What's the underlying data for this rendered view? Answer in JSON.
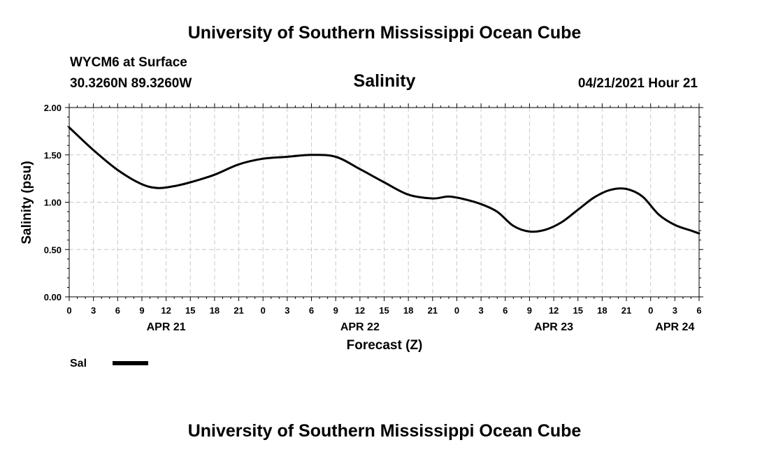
{
  "header": {
    "title_top": "University of Southern Mississippi Ocean Cube",
    "station": "WYCM6 at Surface",
    "coords": "30.3260N  89.3260W",
    "chart_title": "Salinity",
    "timestamp": "04/21/2021 Hour 21",
    "title_bottom": "University of Southern Mississippi Ocean Cube"
  },
  "legend": {
    "label": "Sal"
  },
  "chart_data": {
    "type": "line",
    "title": "Salinity",
    "xlabel": "Forecast (Z)",
    "ylabel": "Salinity (psu)",
    "ylim": [
      0,
      2
    ],
    "y_ticks": [
      "0.00",
      "0.50",
      "1.00",
      "1.50",
      "2.00"
    ],
    "x_range_hours": [
      0,
      78
    ],
    "x_tick_labels": [
      "0",
      "3",
      "6",
      "9",
      "12",
      "15",
      "18",
      "21",
      "0",
      "3",
      "6",
      "9",
      "12",
      "15",
      "18",
      "21",
      "0",
      "3",
      "6",
      "9",
      "12",
      "15",
      "18",
      "21",
      "0",
      "3",
      "6"
    ],
    "date_labels": [
      {
        "label": "APR 21",
        "hour": 12
      },
      {
        "label": "APR 22",
        "hour": 36
      },
      {
        "label": "APR 23",
        "hour": 60
      },
      {
        "label": "APR 24",
        "hour": 75
      }
    ],
    "grid": true,
    "series": [
      {
        "name": "Sal",
        "x": [
          0,
          3,
          6,
          9,
          11,
          13,
          15,
          18,
          21,
          24,
          27,
          30,
          33,
          36,
          39,
          42,
          45,
          47,
          49,
          51,
          53,
          55,
          57,
          59,
          61,
          63,
          65,
          67,
          69,
          71,
          73,
          75,
          77,
          78
        ],
        "values": [
          1.79,
          1.55,
          1.34,
          1.19,
          1.15,
          1.17,
          1.21,
          1.29,
          1.4,
          1.46,
          1.48,
          1.5,
          1.48,
          1.35,
          1.21,
          1.08,
          1.04,
          1.06,
          1.03,
          0.98,
          0.9,
          0.75,
          0.69,
          0.71,
          0.79,
          0.92,
          1.05,
          1.13,
          1.14,
          1.06,
          0.87,
          0.76,
          0.7,
          0.67
        ]
      }
    ]
  }
}
